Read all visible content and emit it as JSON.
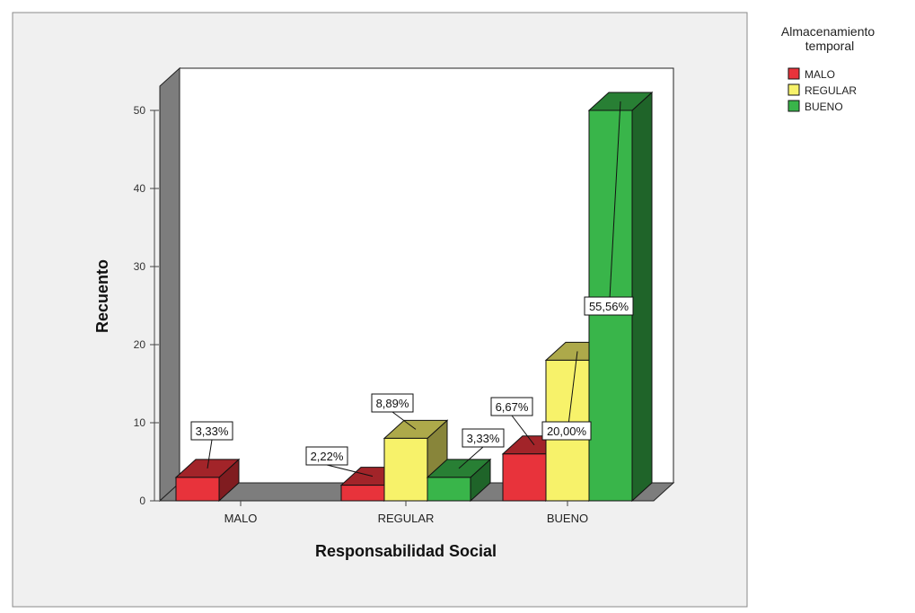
{
  "chart_data": {
    "type": "bar",
    "xlabel": "Responsabilidad Social",
    "ylabel": "Recuento",
    "ylim": [
      0,
      55
    ],
    "yticks": [
      0,
      10,
      20,
      30,
      40,
      50
    ],
    "categories": [
      "MALO",
      "REGULAR",
      "BUENO"
    ],
    "legend_title": "Almacenamiento temporal",
    "legend_position": "top-right",
    "series": [
      {
        "name": "MALO",
        "color": "#e8333b",
        "values": [
          3,
          2,
          6
        ],
        "labels": [
          "3,33%",
          "2,22%",
          "6,67%"
        ]
      },
      {
        "name": "REGULAR",
        "color": "#f7f26a",
        "values": [
          0,
          8,
          18
        ],
        "labels": [
          "",
          "8,89%",
          "20,00%"
        ]
      },
      {
        "name": "BUENO",
        "color": "#39b54a",
        "values": [
          0,
          3,
          50
        ],
        "labels": [
          "",
          "3,33%",
          "55,56%"
        ]
      }
    ]
  }
}
